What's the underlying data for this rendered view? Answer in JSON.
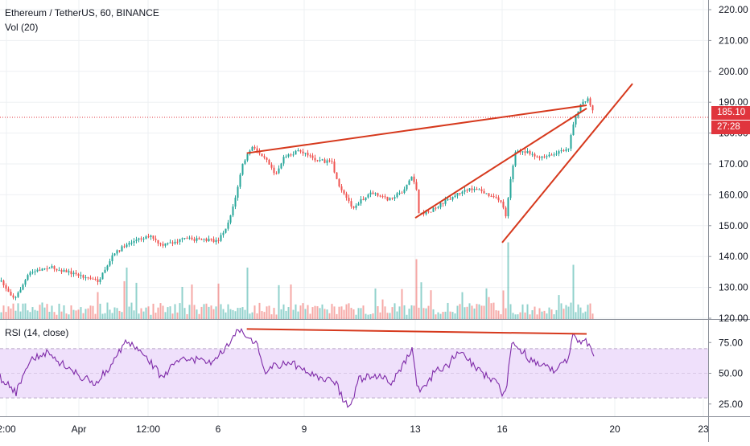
{
  "header": {
    "title": "Ethereum / TetherUS, 60, BINANCE",
    "volume_label": "Vol (20)",
    "rsi_label": "RSI (14, close)"
  },
  "badges": {
    "last_price": "185.10",
    "countdown": "27:28"
  },
  "colors": {
    "up": "#26a69a",
    "down": "#ef5350",
    "trendline": "#d6391d",
    "rsi_line": "#7e2aa8",
    "rsi_band": "#efe0fb",
    "price_line": "#e0353d"
  },
  "chart_data": [
    {
      "type": "candlestick",
      "title": "Ethereum / TetherUS, 60, BINANCE",
      "ylim": [
        115,
        222
      ],
      "y_ticks": [
        "120.00",
        "130.00",
        "140.00",
        "150.00",
        "160.00",
        "170.00",
        "180.00",
        "190.00",
        "200.00",
        "210.00",
        "220.00"
      ],
      "x_ticks": [
        "2:00",
        "Apr",
        "12:00",
        "6",
        "9",
        "13",
        "16",
        "20",
        "23"
      ],
      "last_price": 185.1,
      "close_path_approx": [
        {
          "x": "2:00",
          "close": 129
        },
        {
          "x": "Apr",
          "close": 132
        },
        {
          "x": "12:00",
          "close": 141
        },
        {
          "x": "6",
          "close": 143
        },
        {
          "x": "6",
          "close": 172
        },
        {
          "x": "9",
          "close": 171
        },
        {
          "x": "9",
          "close": 158
        },
        {
          "x": "13",
          "close": 162
        },
        {
          "x": "13",
          "close": 152
        },
        {
          "x": "16",
          "close": 149
        },
        {
          "x": "16",
          "close": 172
        },
        {
          "x": "20",
          "close": 185.1
        }
      ],
      "volume": {
        "name": "Vol (20)"
      },
      "trendlines": [
        {
          "from": [
            7.0,
            173.5
          ],
          "to": [
            19.0,
            189
          ]
        },
        {
          "from": [
            13.0,
            152.5
          ],
          "to": [
            19.0,
            188
          ]
        },
        {
          "from": [
            16.0,
            144.5
          ],
          "to": [
            20.6,
            196
          ]
        }
      ]
    },
    {
      "type": "line",
      "title": "RSI (14, close)",
      "ylim": [
        17,
        92
      ],
      "y_ticks": [
        "25.00",
        "50.00",
        "75.00"
      ],
      "band": [
        30,
        70
      ],
      "trendline": {
        "from": [
          7.0,
          86
        ],
        "to": [
          19.0,
          82
        ]
      }
    }
  ]
}
